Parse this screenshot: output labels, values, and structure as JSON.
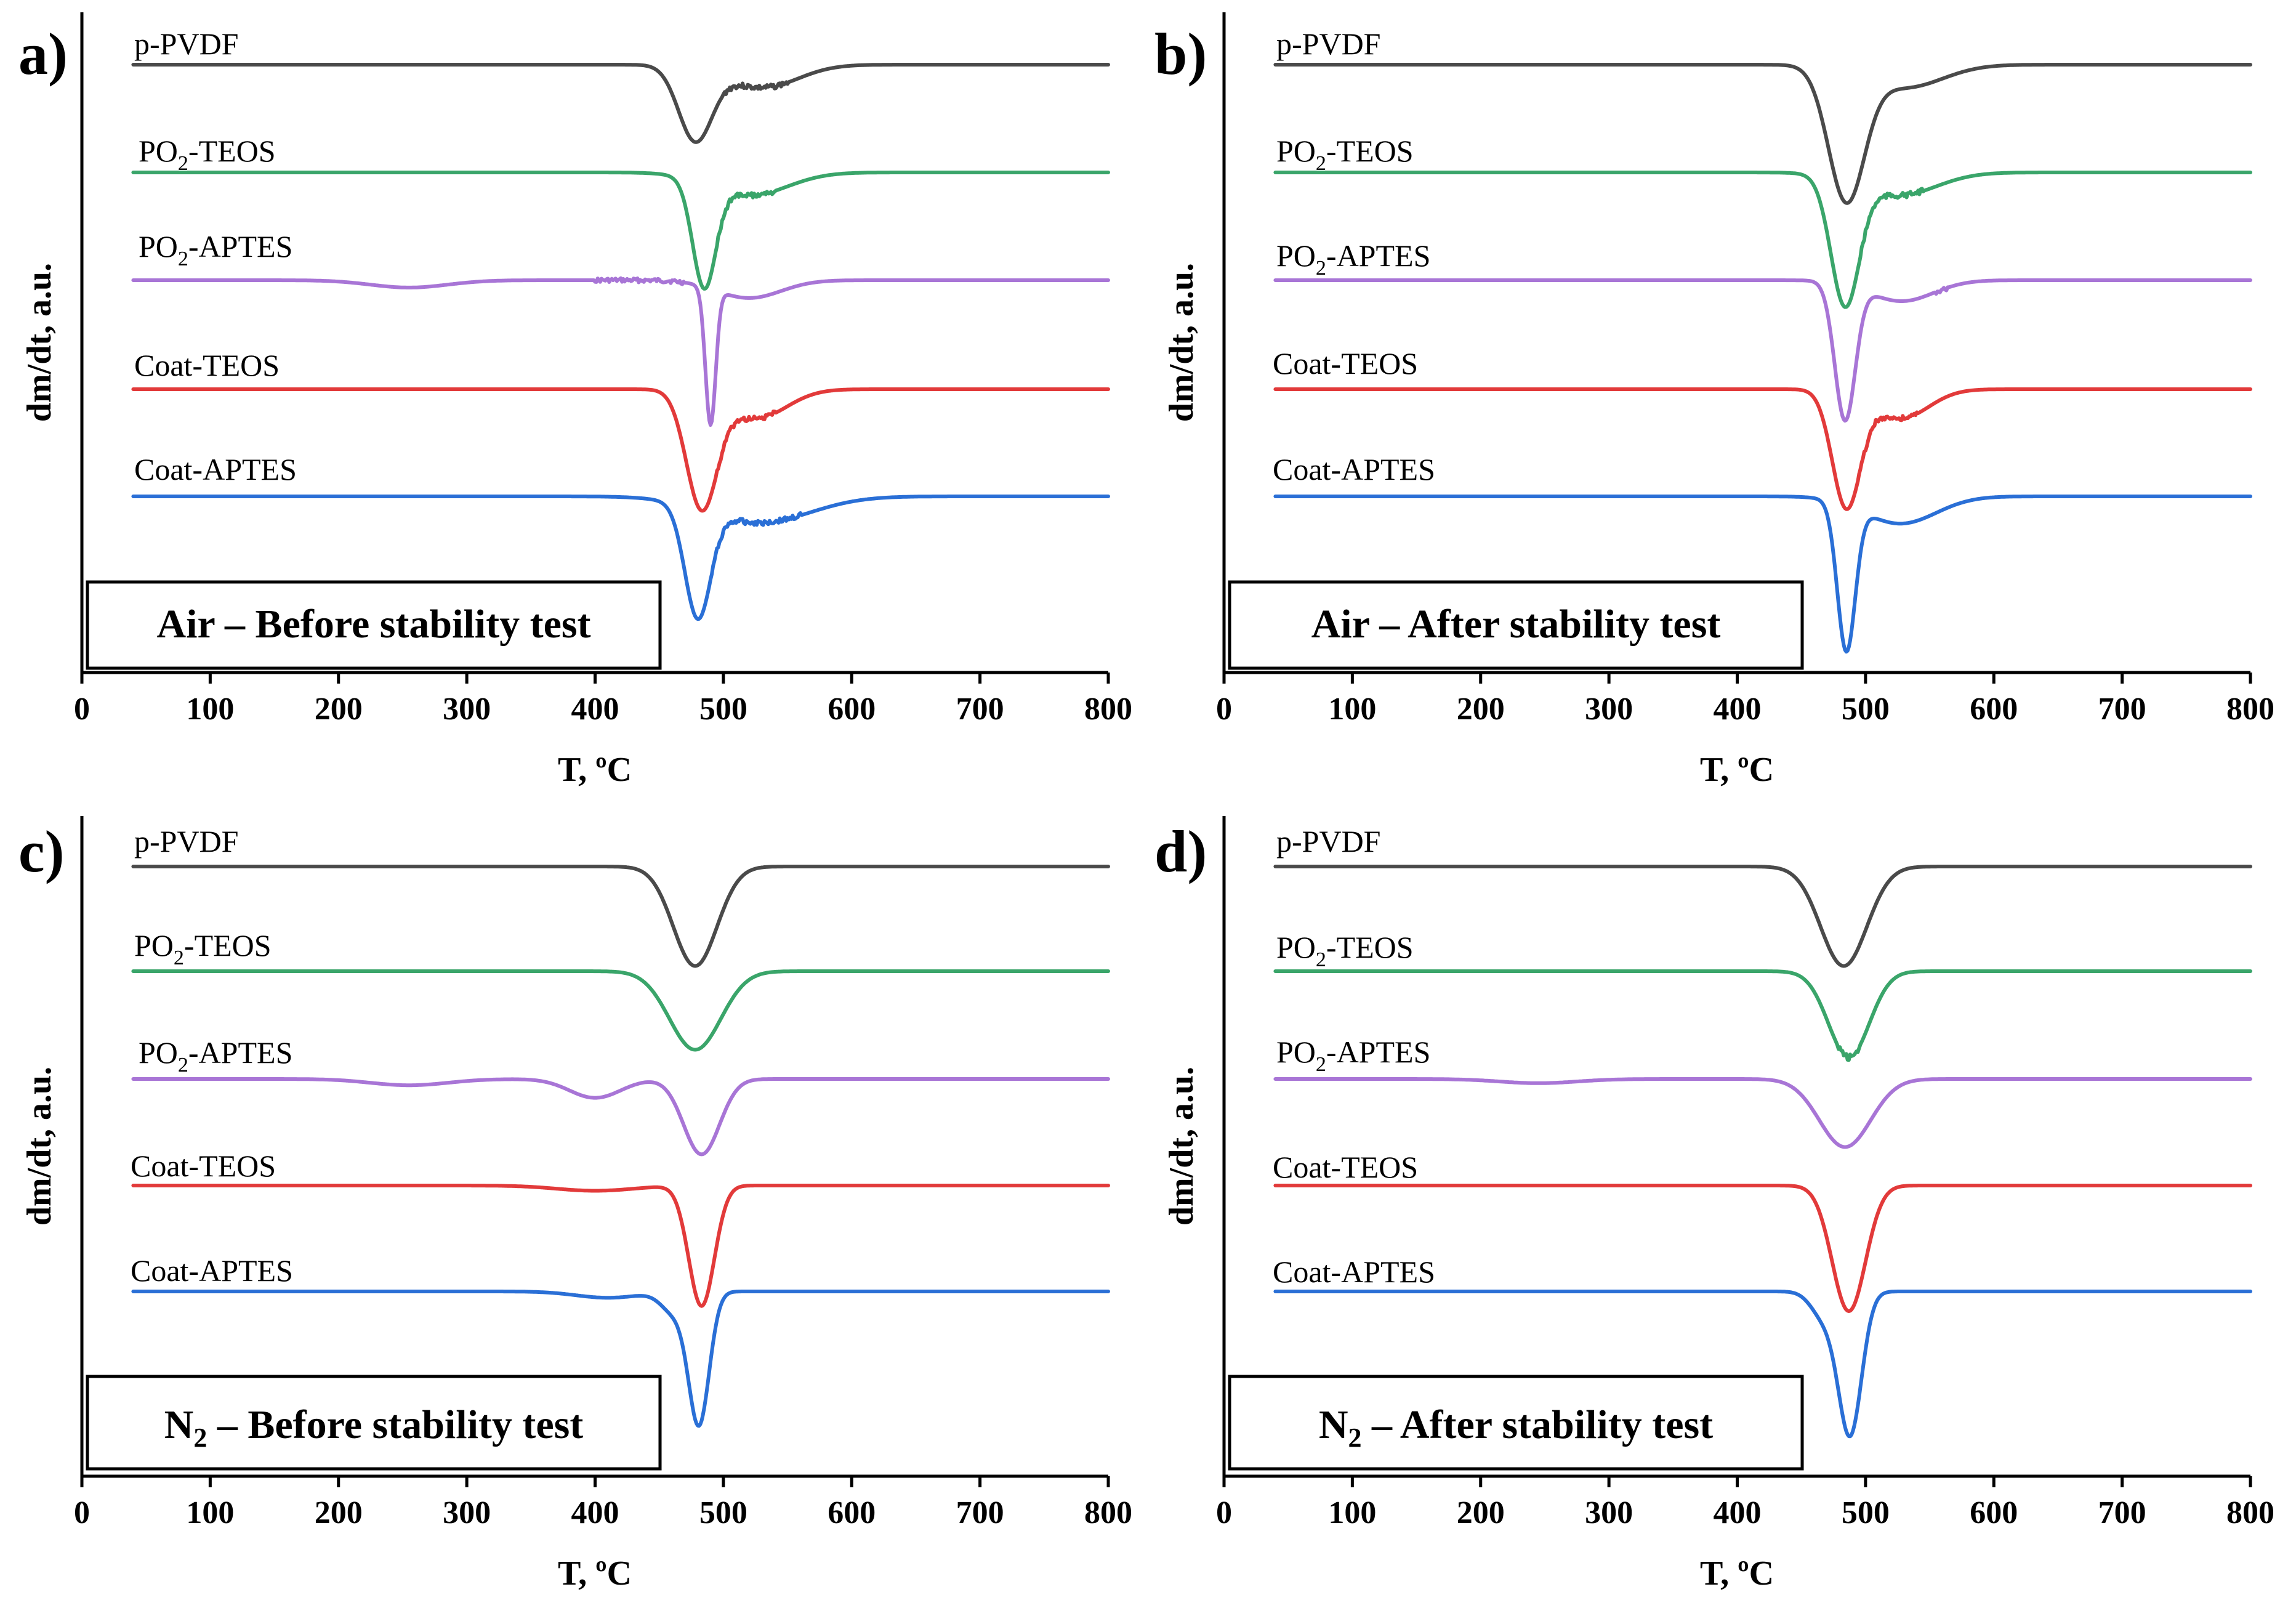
{
  "figure": {
    "background": "#ffffff"
  },
  "series_style": [
    {
      "name": "p-PVDF",
      "label_plain": "p-PVDF",
      "label_main": "p-PVDF",
      "label_sub": "",
      "label_tail": "",
      "color": "#4a4a4a"
    },
    {
      "name": "PO2-TEOS",
      "label_plain": "PO2-TEOS",
      "label_main": "PO",
      "label_sub": "2",
      "label_tail": "-TEOS",
      "color": "#3aa56a"
    },
    {
      "name": "PO2-APTES",
      "label_plain": "PO2-APTES",
      "label_main": "PO",
      "label_sub": "2",
      "label_tail": "-APTES",
      "color": "#a875d6"
    },
    {
      "name": "Coat-TEOS",
      "label_plain": "Coat-TEOS",
      "label_main": "Coat-TEOS",
      "label_sub": "",
      "label_tail": "",
      "color": "#e23a3a"
    },
    {
      "name": "Coat-APTES",
      "label_plain": "Coat-APTES",
      "label_main": "Coat-APTES",
      "label_sub": "",
      "label_tail": "",
      "color": "#2a6fd6"
    }
  ],
  "chart_data": [
    {
      "panel": "a)",
      "type": "line",
      "xlabel": "T, ºC",
      "ylabel": "dm/dt, a.u.",
      "xlim": [
        0,
        800
      ],
      "xticks": [
        0,
        100,
        200,
        300,
        400,
        500,
        600,
        700,
        800
      ],
      "box_main": "Air – Before stability test",
      "box_sub": "",
      "box_tail": "",
      "series": [
        {
          "name": "p-PVDF",
          "peaks": [
            {
              "x": 478,
              "depth": 0.7,
              "w": 13
            },
            {
              "x": 530,
              "depth": 0.22,
              "w": 28
            }
          ],
          "noise": [
            {
              "x0": 500,
              "x1": 550,
              "a": 0.05
            }
          ]
        },
        {
          "name": "PO2-TEOS",
          "peaks": [
            {
              "x": 485,
              "depth": 1.0,
              "w": 9
            },
            {
              "x": 520,
              "depth": 0.22,
              "w": 30
            }
          ],
          "noise": [
            {
              "x0": 495,
              "x1": 540,
              "a": 0.05
            }
          ]
        },
        {
          "name": "PO2-APTES",
          "peaks": [
            {
              "x": 490,
              "depth": 1.3,
              "w": 4
            },
            {
              "x": 255,
              "depth": 0.07,
              "w": 30
            },
            {
              "x": 520,
              "depth": 0.17,
              "w": 25
            }
          ],
          "noise": [
            {
              "x0": 400,
              "x1": 470,
              "a": 0.04
            }
          ]
        },
        {
          "name": "Coat-TEOS",
          "peaks": [
            {
              "x": 483,
              "depth": 1.1,
              "w": 12
            },
            {
              "x": 525,
              "depth": 0.28,
              "w": 24
            }
          ],
          "noise": [
            {
              "x0": 495,
              "x1": 540,
              "a": 0.05
            }
          ]
        },
        {
          "name": "Coat-APTES",
          "peaks": [
            {
              "x": 480,
              "depth": 1.05,
              "w": 10
            },
            {
              "x": 528,
              "depth": 0.25,
              "w": 40
            }
          ],
          "noise": [
            {
              "x0": 490,
              "x1": 560,
              "a": 0.05
            }
          ]
        }
      ]
    },
    {
      "panel": "b)",
      "type": "line",
      "xlabel": "T, ºC",
      "ylabel": "dm/dt, a.u.",
      "xlim": [
        0,
        800
      ],
      "xticks": [
        0,
        100,
        200,
        300,
        400,
        500,
        600,
        700,
        800
      ],
      "box_main": "Air – After  stability test",
      "box_sub": "",
      "box_tail": "",
      "series": [
        {
          "name": "p-PVDF",
          "peaks": [
            {
              "x": 485,
              "depth": 1.25,
              "w": 14
            },
            {
              "x": 530,
              "depth": 0.22,
              "w": 30
            }
          ],
          "noise": []
        },
        {
          "name": "PO2-TEOS",
          "peaks": [
            {
              "x": 484,
              "depth": 1.2,
              "w": 11
            },
            {
              "x": 525,
              "depth": 0.22,
              "w": 30
            }
          ],
          "noise": [
            {
              "x0": 495,
              "x1": 545,
              "a": 0.05
            }
          ]
        },
        {
          "name": "PO2-APTES",
          "peaks": [
            {
              "x": 484,
              "depth": 1.3,
              "w": 8
            },
            {
              "x": 528,
              "depth": 0.2,
              "w": 25
            }
          ],
          "noise": [
            {
              "x0": 555,
              "x1": 565,
              "a": 0.05
            }
          ]
        },
        {
          "name": "Coat-TEOS",
          "peaks": [
            {
              "x": 485,
              "depth": 1.1,
              "w": 11
            },
            {
              "x": 527,
              "depth": 0.28,
              "w": 22
            }
          ],
          "noise": [
            {
              "x0": 495,
              "x1": 540,
              "a": 0.05
            }
          ]
        },
        {
          "name": "Coat-APTES",
          "peaks": [
            {
              "x": 485,
              "depth": 1.4,
              "w": 7
            },
            {
              "x": 527,
              "depth": 0.26,
              "w": 28
            }
          ],
          "noise": []
        }
      ]
    },
    {
      "panel": "c)",
      "type": "line",
      "xlabel": "T, ºC",
      "ylabel": "dm/dt, a.u.",
      "xlim": [
        0,
        800
      ],
      "xticks": [
        0,
        100,
        200,
        300,
        400,
        500,
        600,
        700,
        800
      ],
      "box_main": "N",
      "box_sub": "2",
      "box_tail": " – Before stability test",
      "series": [
        {
          "name": "p-PVDF",
          "peaks": [
            {
              "x": 478,
              "depth": 0.95,
              "w": 17
            }
          ],
          "noise": []
        },
        {
          "name": "PO2-TEOS",
          "peaks": [
            {
              "x": 478,
              "depth": 0.75,
              "w": 20
            }
          ],
          "noise": []
        },
        {
          "name": "PO2-APTES",
          "peaks": [
            {
              "x": 483,
              "depth": 0.72,
              "w": 14
            },
            {
              "x": 400,
              "depth": 0.18,
              "w": 20
            },
            {
              "x": 255,
              "depth": 0.06,
              "w": 30
            }
          ],
          "noise": []
        },
        {
          "name": "Coat-TEOS",
          "peaks": [
            {
              "x": 483,
              "depth": 1.15,
              "w": 10
            },
            {
              "x": 400,
              "depth": 0.05,
              "w": 30
            }
          ],
          "noise": []
        },
        {
          "name": "Coat-APTES",
          "peaks": [
            {
              "x": 481,
              "depth": 1.25,
              "w": 8
            },
            {
              "x": 410,
              "depth": 0.06,
              "w": 25
            },
            {
              "x": 462,
              "depth": 0.2,
              "w": 10
            }
          ],
          "noise": []
        }
      ]
    },
    {
      "panel": "d)",
      "type": "line",
      "xlabel": "T, ºC",
      "ylabel": "dm/dt, a.u.",
      "xlim": [
        0,
        800
      ],
      "xticks": [
        0,
        100,
        200,
        300,
        400,
        500,
        600,
        700,
        800
      ],
      "box_main": "N",
      "box_sub": "2",
      "box_tail": " – After stability test",
      "series": [
        {
          "name": "p-PVDF",
          "peaks": [
            {
              "x": 483,
              "depth": 0.95,
              "w": 18
            }
          ],
          "noise": []
        },
        {
          "name": "PO2-TEOS",
          "peaks": [
            {
              "x": 487,
              "depth": 0.82,
              "w": 16
            }
          ],
          "noise": [
            {
              "x0": 478,
              "x1": 495,
              "a": 0.06
            }
          ]
        },
        {
          "name": "PO2-APTES",
          "peaks": [
            {
              "x": 484,
              "depth": 0.65,
              "w": 20
            },
            {
              "x": 245,
              "depth": 0.04,
              "w": 30
            }
          ],
          "noise": []
        },
        {
          "name": "Coat-TEOS",
          "peaks": [
            {
              "x": 487,
              "depth": 1.2,
              "w": 13
            }
          ],
          "noise": []
        },
        {
          "name": "Coat-APTES",
          "peaks": [
            {
              "x": 488,
              "depth": 1.35,
              "w": 9
            },
            {
              "x": 468,
              "depth": 0.25,
              "w": 10
            }
          ],
          "noise": []
        }
      ]
    }
  ]
}
